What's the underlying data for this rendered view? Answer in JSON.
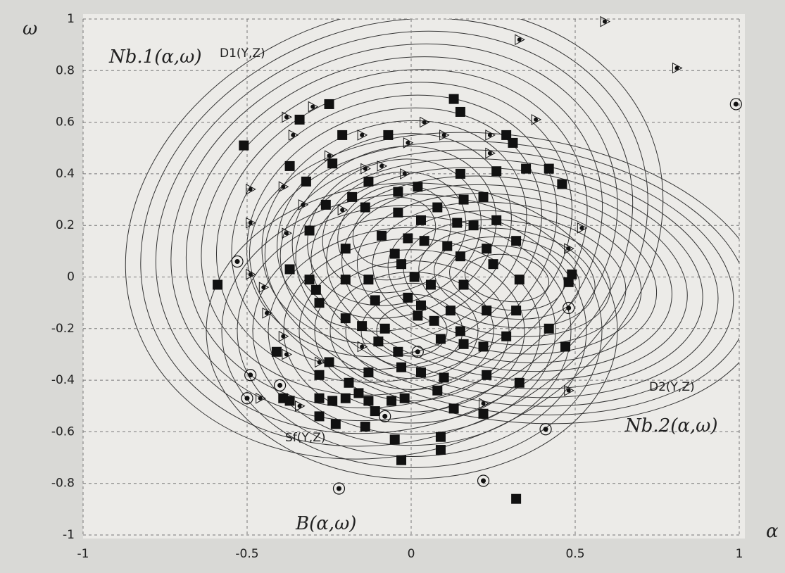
{
  "chart_data": {
    "type": "scatter",
    "x_label": "α",
    "y_label": "ω",
    "annotations": [
      "Nb.1(α,ω)",
      "D1(Y,Z)",
      "D2(Y,Z)",
      "Nb.2(α,ω)",
      "Sf(Y,Z)",
      "B(α,ω)"
    ],
    "xlim": [
      -1,
      1
    ],
    "ylim": [
      -1,
      1
    ],
    "xticks": [
      -1,
      -0.5,
      0,
      0.5,
      1
    ],
    "yticks": [
      -1,
      -0.8,
      -0.6,
      -0.4,
      -0.2,
      0,
      0.2,
      0.4,
      0.6,
      0.8,
      1
    ],
    "grid": true,
    "series": [
      {
        "marker": "square",
        "color": "#111111",
        "x": [
          -0.59,
          -0.51,
          -0.34,
          -0.25,
          0.13,
          0.15,
          -0.21,
          -0.07,
          0.29,
          0.31,
          -0.24,
          -0.37,
          0.35,
          0.42,
          0.46,
          0.15,
          0.26,
          -0.13,
          -0.32,
          -0.18,
          -0.26,
          -0.14,
          -0.04,
          0.02,
          0.08,
          0.16,
          0.22,
          -0.04,
          0.03,
          0.14,
          0.26,
          0.19,
          -0.31,
          -0.09,
          -0.01,
          0.04,
          0.11,
          0.23,
          0.32,
          -0.2,
          -0.05,
          0.15,
          0.25,
          -0.03,
          -0.37,
          0.49,
          0.48,
          0.33,
          -0.31,
          -0.2,
          -0.13,
          0.01,
          0.06,
          0.16,
          -0.29,
          -0.28,
          -0.11,
          -0.01,
          0.03,
          0.12,
          0.23,
          0.32,
          -0.2,
          -0.15,
          -0.08,
          0.02,
          0.07,
          0.15,
          0.29,
          0.42,
          0.47,
          0.09,
          0.16,
          -0.1,
          -0.04,
          0.22,
          -0.41,
          -0.25,
          -0.13,
          -0.03,
          0.03,
          0.1,
          0.23,
          0.33,
          -0.28,
          -0.19,
          -0.16,
          0.08,
          -0.39,
          -0.37,
          -0.28,
          -0.24,
          -0.2,
          -0.13,
          -0.06,
          -0.02,
          0.13,
          0.22,
          -0.28,
          -0.23,
          -0.14,
          -0.11,
          0.09,
          -0.05,
          0.09,
          -0.03,
          0.32
        ],
        "y": [
          -0.03,
          0.51,
          0.61,
          0.67,
          0.69,
          0.64,
          0.55,
          0.55,
          0.55,
          0.52,
          0.44,
          0.43,
          0.42,
          0.42,
          0.36,
          0.4,
          0.41,
          0.37,
          0.37,
          0.31,
          0.28,
          0.27,
          0.33,
          0.35,
          0.27,
          0.3,
          0.31,
          0.25,
          0.22,
          0.21,
          0.22,
          0.2,
          0.18,
          0.16,
          0.15,
          0.14,
          0.12,
          0.11,
          0.14,
          0.11,
          0.09,
          0.08,
          0.05,
          0.05,
          0.03,
          0.01,
          -0.02,
          -0.01,
          -0.01,
          -0.01,
          -0.01,
          0,
          -0.03,
          -0.03,
          -0.05,
          -0.1,
          -0.09,
          -0.08,
          -0.11,
          -0.13,
          -0.13,
          -0.13,
          -0.16,
          -0.19,
          -0.2,
          -0.15,
          -0.17,
          -0.21,
          -0.23,
          -0.2,
          -0.27,
          -0.24,
          -0.26,
          -0.25,
          -0.29,
          -0.27,
          -0.29,
          -0.33,
          -0.37,
          -0.35,
          -0.37,
          -0.39,
          -0.38,
          -0.41,
          -0.38,
          -0.41,
          -0.45,
          -0.44,
          -0.47,
          -0.48,
          -0.47,
          -0.48,
          -0.47,
          -0.48,
          -0.48,
          -0.47,
          -0.51,
          -0.53,
          -0.54,
          -0.57,
          -0.58,
          -0.52,
          -0.62,
          -0.63,
          -0.67,
          -0.71,
          -0.86
        ]
      },
      {
        "marker": "triangle",
        "color": "#111111",
        "x": [
          0.59,
          0.33,
          0.81,
          -0.38,
          -0.3,
          0.04,
          0.38,
          -0.36,
          -0.15,
          -0.01,
          0.1,
          0.24,
          -0.25,
          0.24,
          -0.14,
          -0.02,
          -0.09,
          -0.49,
          -0.39,
          -0.33,
          -0.21,
          -0.49,
          -0.38,
          0.52,
          0.48,
          -0.49,
          -0.45,
          -0.44,
          -0.39,
          -0.38,
          -0.28,
          0.48,
          -0.46,
          -0.34,
          0.22,
          -0.15
        ],
        "y": [
          0.99,
          0.92,
          0.81,
          0.62,
          0.66,
          0.6,
          0.61,
          0.55,
          0.55,
          0.52,
          0.55,
          0.55,
          0.47,
          0.48,
          0.42,
          0.4,
          0.43,
          0.34,
          0.35,
          0.28,
          0.26,
          0.21,
          0.17,
          0.19,
          0.11,
          0.01,
          -0.04,
          -0.14,
          -0.23,
          -0.3,
          -0.33,
          -0.44,
          -0.47,
          -0.5,
          -0.49,
          -0.27
        ]
      },
      {
        "marker": "circle",
        "color": "#111111",
        "x": [
          0.99,
          -0.53,
          0.48,
          -0.49,
          -0.5,
          -0.4,
          0.02,
          -0.08,
          0.41,
          0.22,
          -0.22
        ],
        "y": [
          0.67,
          0.06,
          -0.12,
          -0.38,
          -0.47,
          -0.42,
          -0.29,
          -0.54,
          -0.59,
          -0.79,
          -0.82
        ]
      }
    ]
  }
}
